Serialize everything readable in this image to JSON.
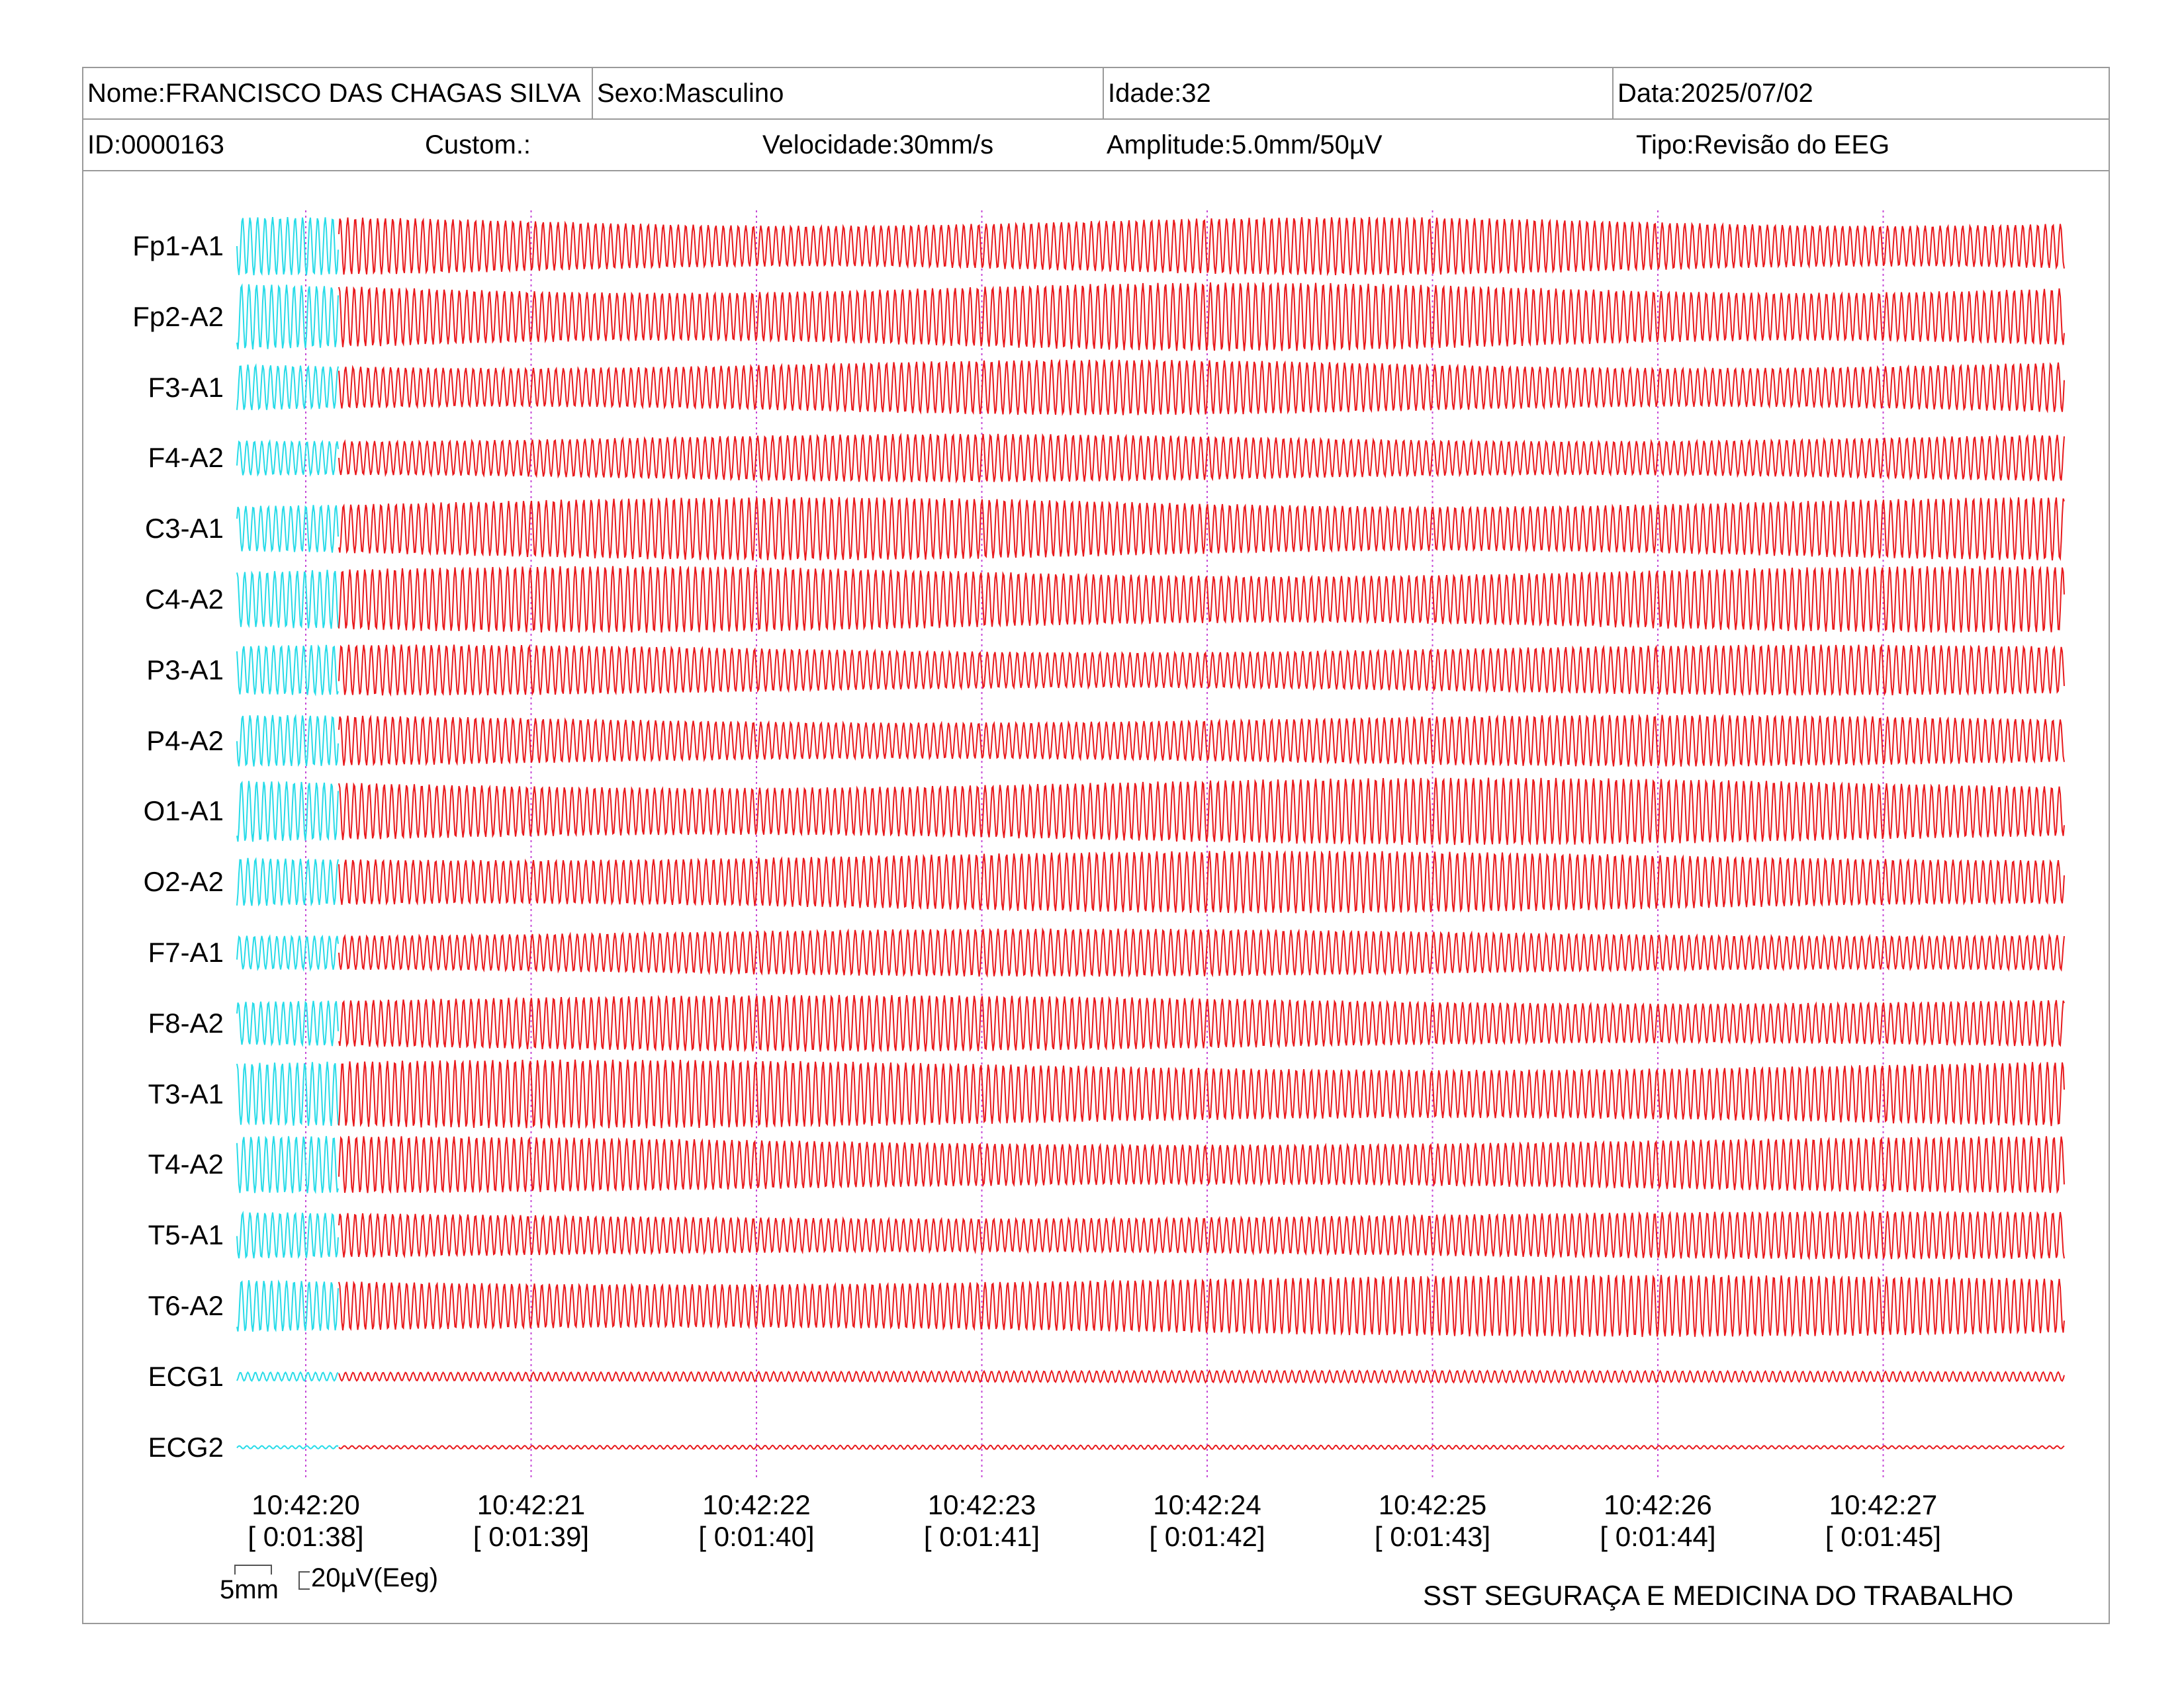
{
  "header": {
    "row1": [
      {
        "label": "Nome:FRANCISCO DAS CHAGAS SILVA"
      },
      {
        "label": "Sexo:Masculino"
      },
      {
        "label": "Idade:32"
      },
      {
        "label": "Data:2025/07/02"
      }
    ],
    "row2": [
      {
        "label": "ID:0000163"
      },
      {
        "label": "Custom.:"
      },
      {
        "label": "Velocidade:30mm/s"
      },
      {
        "label": "Amplitude:5.0mm/50µV"
      },
      {
        "label": "Tipo:Revisão do EEG"
      }
    ]
  },
  "scale": {
    "time_bar": "5mm",
    "amp_bar": "20µV(Eeg)"
  },
  "footer": {
    "organization": "SST SEGURAÇA E MEDICINA DO TRABALHO"
  },
  "colors": {
    "highlight_trace": "#27dbe8",
    "trace": "#e8191c",
    "time_marker": "#c64ad6",
    "border": "#9a9a9a"
  },
  "chart_data": {
    "type": "line",
    "channels": [
      "Fp1-A1",
      "Fp2-A2",
      "F3-A1",
      "F4-A2",
      "C3-A1",
      "C4-A2",
      "P3-A1",
      "P4-A2",
      "O1-A1",
      "O2-A2",
      "F7-A1",
      "F8-A2",
      "T3-A1",
      "T4-A2",
      "T5-A1",
      "T6-A2",
      "ECG1",
      "ECG2"
    ],
    "time_ticks": [
      {
        "time": "10:42:20",
        "elapsed": "[ 0:01:38]"
      },
      {
        "time": "10:42:21",
        "elapsed": "[ 0:01:39]"
      },
      {
        "time": "10:42:22",
        "elapsed": "[ 0:01:40]"
      },
      {
        "time": "10:42:23",
        "elapsed": "[ 0:01:41]"
      },
      {
        "time": "10:42:24",
        "elapsed": "[ 0:01:42]"
      },
      {
        "time": "10:42:25",
        "elapsed": "[ 0:01:43]"
      },
      {
        "time": "10:42:26",
        "elapsed": "[ 0:01:44]"
      },
      {
        "time": "10:42:27",
        "elapsed": "[ 0:01:45]"
      }
    ],
    "highlighted_segment_seconds": 0.45,
    "signal_frequency_hz": 30
  }
}
